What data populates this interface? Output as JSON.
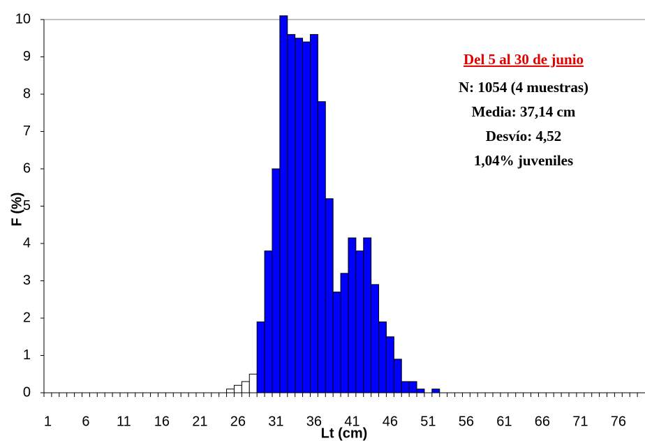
{
  "chart_data": {
    "type": "bar",
    "x_label": "Lt (cm)",
    "y_label": "F (%)",
    "annotations": [
      "Del 5 al 30 de junio",
      "N: 1054 (4 muestras)",
      "Media: 37,14 cm",
      "Desvío: 4,52",
      "1,04% juveniles"
    ],
    "annotation_color": "#e00000",
    "categories": [
      "1",
      null,
      null,
      null,
      null,
      "6",
      null,
      null,
      null,
      null,
      "11",
      null,
      null,
      null,
      null,
      "16",
      null,
      null,
      null,
      null,
      "21",
      null,
      null,
      null,
      null,
      "26",
      null,
      null,
      null,
      null,
      "31",
      null,
      null,
      null,
      null,
      "36",
      null,
      null,
      null,
      null,
      "41",
      null,
      null,
      null,
      null,
      "46",
      null,
      null,
      null,
      null,
      "51",
      null,
      null,
      null,
      null,
      "56",
      null,
      null,
      null,
      null,
      "61",
      null,
      null,
      null,
      null,
      "66",
      null,
      null,
      null,
      null,
      "71",
      null,
      null,
      null,
      null,
      "76",
      null,
      null,
      null
    ],
    "series": [
      {
        "color": "#ffffff",
        "values": [
          0,
          0,
          0,
          0,
          0,
          0,
          0,
          0,
          0,
          0,
          0,
          0,
          0,
          0,
          0,
          0,
          0,
          0,
          0,
          0,
          0,
          0,
          0,
          0,
          0.1,
          0.2,
          0.3,
          0.5,
          0,
          0,
          0,
          0,
          0,
          0,
          0,
          0,
          0,
          0,
          0,
          0,
          0,
          0,
          0,
          0,
          0,
          0,
          0,
          0,
          0,
          0,
          0,
          0,
          0,
          0,
          0,
          0,
          0,
          0,
          0,
          0,
          0,
          0,
          0,
          0,
          0,
          0,
          0,
          0,
          0,
          0,
          0,
          0,
          0,
          0,
          0,
          0,
          0,
          0,
          0
        ]
      },
      {
        "color": "#0000ff",
        "values": [
          0,
          0,
          0,
          0,
          0,
          0,
          0,
          0,
          0,
          0,
          0,
          0,
          0,
          0,
          0,
          0,
          0,
          0,
          0,
          0,
          0,
          0,
          0,
          0,
          0,
          0,
          0,
          0,
          1.9,
          3.8,
          6.0,
          10.1,
          9.6,
          9.5,
          9.4,
          9.6,
          7.8,
          5.2,
          2.7,
          3.2,
          4.15,
          3.8,
          4.15,
          2.9,
          1.9,
          1.5,
          0.9,
          0.3,
          0.3,
          0.1,
          0,
          0.1,
          0,
          0,
          0,
          0,
          0,
          0,
          0,
          0,
          0,
          0,
          0,
          0,
          0,
          0,
          0,
          0,
          0,
          0,
          0,
          0,
          0,
          0,
          0,
          0,
          0,
          0,
          0
        ]
      }
    ],
    "ylim": [
      0,
      10
    ],
    "yticks": [
      0,
      1,
      2,
      3,
      4,
      5,
      6,
      7,
      8,
      9,
      10
    ]
  }
}
